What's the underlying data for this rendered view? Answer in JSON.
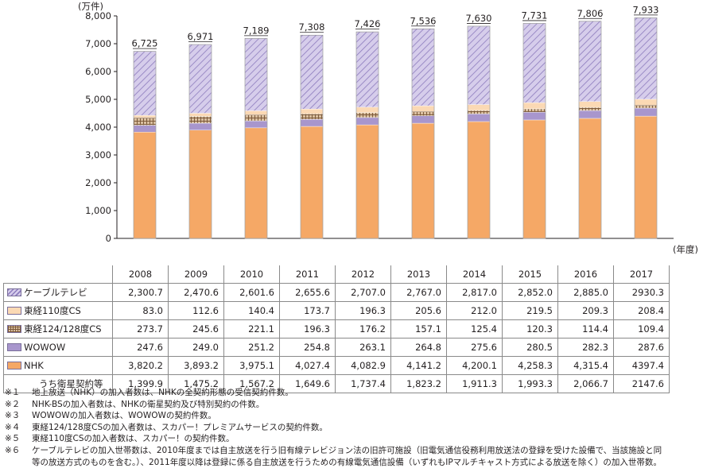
{
  "chart_data": {
    "type": "bar",
    "stacked": true,
    "y_unit": "(万件)",
    "x_unit": "(年度)",
    "ylim": [
      0,
      8000
    ],
    "yticks": [
      "0",
      "1,000",
      "2,000",
      "3,000",
      "4,000",
      "5,000",
      "6,000",
      "7,000",
      "8,000"
    ],
    "categories": [
      "2008",
      "2009",
      "2010",
      "2011",
      "2012",
      "2013",
      "2014",
      "2015",
      "2016",
      "2017"
    ],
    "totals": [
      "6,725",
      "6,971",
      "7,189",
      "7,308",
      "7,426",
      "7,536",
      "7,630",
      "7,731",
      "7,806",
      "7,933"
    ],
    "series": [
      {
        "name": "NHK",
        "color": "#f5a866",
        "pattern": "solid",
        "values": [
          3820.2,
          3893.2,
          3975.1,
          4027.4,
          4082.9,
          4141.2,
          4200.1,
          4258.3,
          4315.4,
          4397.4
        ],
        "display": [
          "3,820.2",
          "3,893.2",
          "3,975.1",
          "4,027.4",
          "4,082.9",
          "4,141.2",
          "4,200.1",
          "4,258.3",
          "4,315.4",
          "4397.4"
        ]
      },
      {
        "name": "WOWOW",
        "color": "#a896cd",
        "pattern": "solid",
        "values": [
          247.6,
          249.0,
          251.2,
          254.8,
          263.1,
          264.8,
          275.6,
          280.5,
          282.3,
          287.6
        ],
        "display": [
          "247.6",
          "249.0",
          "251.2",
          "254.8",
          "263.1",
          "264.8",
          "275.6",
          "280.5",
          "282.3",
          "287.6"
        ]
      },
      {
        "name": "東経124/128度CS",
        "color": "#c9a47c",
        "pattern": "grid",
        "values": [
          273.7,
          245.6,
          221.1,
          196.3,
          176.2,
          157.1,
          125.4,
          120.3,
          114.4,
          109.4
        ],
        "display": [
          "273.7",
          "245.6",
          "221.1",
          "196.3",
          "176.2",
          "157.1",
          "125.4",
          "120.3",
          "114.4",
          "109.4"
        ]
      },
      {
        "name": "東経110度CS",
        "color": "#fbd9b4",
        "pattern": "solid",
        "values": [
          83.0,
          112.6,
          140.4,
          173.7,
          196.3,
          205.6,
          212.0,
          219.5,
          209.3,
          208.4
        ],
        "display": [
          "83.0",
          "112.6",
          "140.4",
          "173.7",
          "196.3",
          "205.6",
          "212.0",
          "219.5",
          "209.3",
          "208.4"
        ]
      },
      {
        "name": "ケーブルテレビ",
        "color": "#c9bfe3",
        "pattern": "hatch",
        "values": [
          2300.7,
          2470.6,
          2601.6,
          2655.6,
          2707.0,
          2767.0,
          2817.0,
          2852.0,
          2885.0,
          2930.3
        ],
        "display": [
          "2,300.7",
          "2,470.6",
          "2,601.6",
          "2,655.6",
          "2,707.0",
          "2,767.0",
          "2,817.0",
          "2,852.0",
          "2,885.0",
          "2930.3"
        ]
      }
    ],
    "extra_row": {
      "name": "うち衛星契約等",
      "display": [
        "1,399.9",
        "1,475.2",
        "1,567.2",
        "1,649.6",
        "1,737.4",
        "1,823.2",
        "1,911.3",
        "1,993.3",
        "2,066.7",
        "2147.6"
      ]
    },
    "table_order": [
      "ケーブルテレビ",
      "東経110度CS",
      "東経124/128度CS",
      "WOWOW",
      "NHK"
    ]
  },
  "notes": [
    {
      "mark": "※１",
      "text": "地上放送（NHK）の加入者数は、NHKの全契約形態の受信契約件数。"
    },
    {
      "mark": "※２",
      "text": "NHK-BSの加入者数は、NHKの衛星契約及び特別契約の件数。"
    },
    {
      "mark": "※３",
      "text": "WOWOWの加入者数は、WOWOWの契約件数。"
    },
    {
      "mark": "※４",
      "text": "東経124/128度CSの加入者数は、スカパー！プレミアムサービスの契約件数。"
    },
    {
      "mark": "※５",
      "text": "東経110度CSの加入者数は、スカパー！の契約件数。"
    },
    {
      "mark": "※６",
      "text": "ケーブルテレビの加入世帯数は、2010年度までは自主放送を行う旧有線テレビジョン法の旧許可施設（旧電気通信役務利用放送法の登録を受けた設備で、当該施設と同"
    }
  ],
  "note_cont": "等の放送方式のものを含む。）、2011年度以降は登録に係る自主放送を行うための有線電気通信設備（いずれもIPマルチキャスト方式による放送を除く）の加入世帯数。"
}
